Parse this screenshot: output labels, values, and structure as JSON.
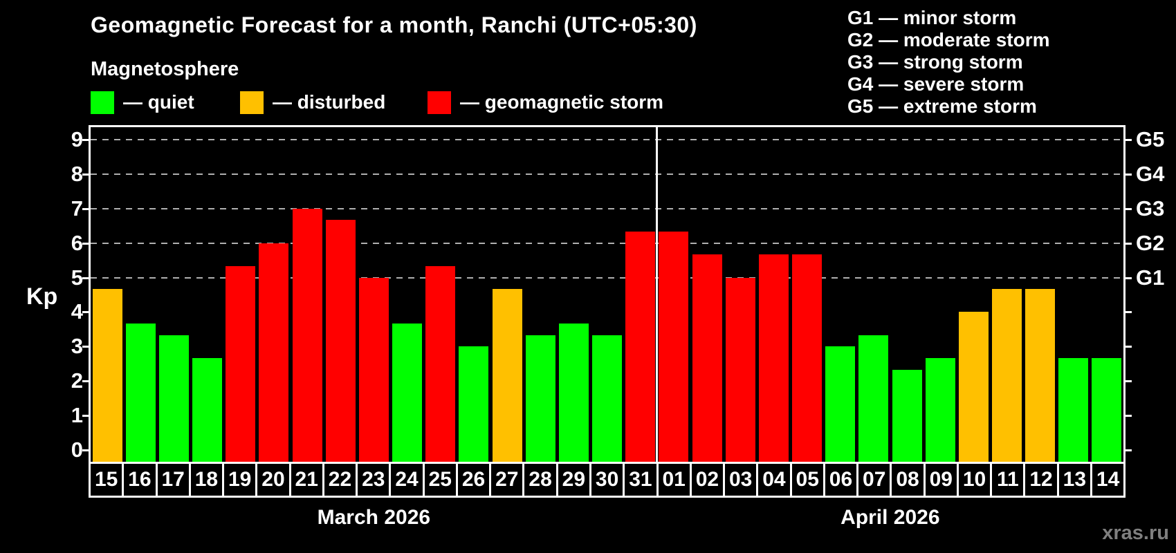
{
  "header": {
    "title": "Geomagnetic Forecast for a month, Ranchi (UTC+05:30)",
    "subtitle": "Magnetosphere"
  },
  "legend": {
    "items": [
      {
        "key": "quiet",
        "label": "— quiet",
        "color": "#00ff00"
      },
      {
        "key": "disturbed",
        "label": "— disturbed",
        "color": "#ffc000"
      },
      {
        "key": "storm",
        "label": "— geomagnetic storm",
        "color": "#ff0000"
      }
    ]
  },
  "g_legend": [
    "G1 — minor storm",
    "G2 — moderate storm",
    "G3 — strong storm",
    "G4 — severe storm",
    "G5 — extreme storm"
  ],
  "axis": {
    "y_label": "Kp",
    "y_ticks": [
      0,
      1,
      2,
      3,
      4,
      5,
      6,
      7,
      8,
      9
    ],
    "g_levels": [
      {
        "kp": 5,
        "label": "G1"
      },
      {
        "kp": 6,
        "label": "G2"
      },
      {
        "kp": 7,
        "label": "G3"
      },
      {
        "kp": 8,
        "label": "G4"
      },
      {
        "kp": 9,
        "label": "G5"
      }
    ]
  },
  "watermark": "xras.ru",
  "chart_data": {
    "type": "bar",
    "title": "Geomagnetic Forecast for a month, Ranchi (UTC+05:30)",
    "ylabel": "Kp",
    "ylim": [
      -0.35,
      9.55
    ],
    "grid": "dashed horizontal at Kp 5-9 (G1-G5)",
    "legend_position": "top-left",
    "months": [
      {
        "label": "March 2026",
        "days": [
          "15",
          "16",
          "17",
          "18",
          "19",
          "20",
          "21",
          "22",
          "23",
          "24",
          "25",
          "26",
          "27",
          "28",
          "29",
          "30",
          "31"
        ],
        "kp": [
          4.67,
          3.67,
          3.33,
          2.67,
          5.33,
          6.0,
          7.0,
          6.67,
          5.0,
          3.67,
          5.33,
          3.0,
          4.67,
          3.33,
          3.67,
          3.33,
          6.33
        ],
        "state": [
          "disturbed",
          "quiet",
          "quiet",
          "quiet",
          "storm",
          "storm",
          "storm",
          "storm",
          "storm",
          "quiet",
          "storm",
          "quiet",
          "disturbed",
          "quiet",
          "quiet",
          "quiet",
          "storm"
        ]
      },
      {
        "label": "April 2026",
        "days": [
          "01",
          "02",
          "03",
          "04",
          "05",
          "06",
          "07",
          "08",
          "09",
          "10",
          "11",
          "12",
          "13",
          "14"
        ],
        "kp": [
          6.33,
          5.67,
          5.0,
          5.67,
          5.67,
          3.0,
          3.33,
          2.33,
          2.67,
          4.0,
          4.67,
          4.67,
          2.67,
          2.67
        ],
        "state": [
          "storm",
          "storm",
          "storm",
          "storm",
          "storm",
          "quiet",
          "quiet",
          "quiet",
          "quiet",
          "disturbed",
          "disturbed",
          "disturbed",
          "quiet",
          "quiet"
        ]
      }
    ]
  }
}
